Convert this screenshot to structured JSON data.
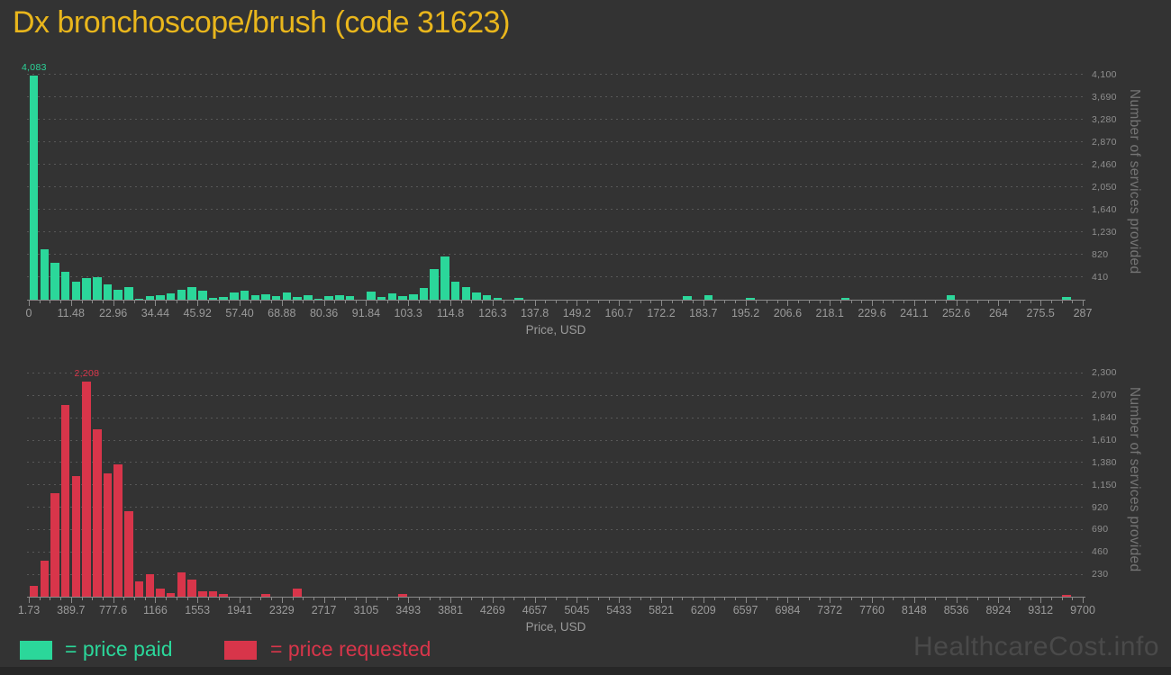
{
  "title": "Dx bronchoscope/brush (code 31623)",
  "watermark": "HealthcareCost.info",
  "colors": {
    "background": "#333333",
    "title": "#e9b61c",
    "price_paid": "#2bd79a",
    "price_requested": "#d8354a",
    "gridline": "#585858",
    "axis_text": "#9a9a9a",
    "watermark": "#4a4a4a"
  },
  "legend": {
    "paid_label": "= price paid",
    "requested_label": "= price requested"
  },
  "chart_data": [
    {
      "type": "bar",
      "series_name": "price paid",
      "xlabel": "Price, USD",
      "ylabel": "Number of services provided",
      "color": "#2bd79a",
      "xlim": [
        0,
        287
      ],
      "ylim": [
        0,
        4305
      ],
      "bin_width_usd": 2.87,
      "grid": true,
      "legend_position": "bottom-left",
      "peak_label": "4,083",
      "x_ticks": [
        "0",
        "11.48",
        "22.96",
        "34.44",
        "45.92",
        "57.40",
        "68.88",
        "80.36",
        "91.84",
        "103.3",
        "114.8",
        "126.3",
        "137.8",
        "149.2",
        "160.7",
        "172.2",
        "183.7",
        "195.2",
        "206.6",
        "218.1",
        "229.6",
        "241.1",
        "252.6",
        "264",
        "275.5",
        "287"
      ],
      "y_ticks": [
        "410",
        "820",
        "1,230",
        "1,640",
        "2,050",
        "2,460",
        "2,870",
        "3,280",
        "3,690",
        "4,100"
      ],
      "values": [
        4083,
        920,
        675,
        515,
        320,
        400,
        410,
        285,
        180,
        235,
        20,
        65,
        75,
        115,
        180,
        225,
        160,
        40,
        50,
        130,
        160,
        85,
        100,
        60,
        135,
        50,
        80,
        20,
        65,
        75,
        60,
        0,
        145,
        50,
        120,
        70,
        100,
        220,
        555,
        785,
        330,
        230,
        125,
        90,
        40,
        0,
        40,
        0,
        0,
        0,
        0,
        0,
        0,
        0,
        0,
        0,
        0,
        0,
        0,
        0,
        0,
        0,
        65,
        0,
        80,
        0,
        0,
        0,
        30,
        0,
        0,
        0,
        0,
        0,
        0,
        0,
        0,
        40,
        0,
        0,
        0,
        0,
        0,
        0,
        0,
        0,
        0,
        80,
        0,
        0,
        0,
        0,
        0,
        0,
        0,
        0,
        0,
        0,
        45,
        0
      ]
    },
    {
      "type": "bar",
      "series_name": "price requested",
      "xlabel": "Price, USD",
      "ylabel": "Number of services provided",
      "color": "#d8354a",
      "xlim": [
        1.73,
        9700
      ],
      "ylim": [
        0,
        2415
      ],
      "bin_width_usd": 96.98,
      "grid": true,
      "legend_position": "bottom-left",
      "peak_label": "2,208",
      "x_ticks": [
        "1.73",
        "389.7",
        "777.6",
        "1166",
        "1553",
        "1941",
        "2329",
        "2717",
        "3105",
        "3493",
        "3881",
        "4269",
        "4657",
        "5045",
        "5433",
        "5821",
        "6209",
        "6597",
        "6984",
        "7372",
        "7760",
        "8148",
        "8536",
        "8924",
        "9312",
        "9700"
      ],
      "y_ticks": [
        "230",
        "460",
        "690",
        "920",
        "1,150",
        "1,380",
        "1,610",
        "1,840",
        "2,070",
        "2,300"
      ],
      "values": [
        110,
        370,
        1060,
        1970,
        1240,
        2208,
        1720,
        1270,
        1360,
        880,
        160,
        230,
        85,
        36,
        250,
        175,
        55,
        60,
        30,
        0,
        0,
        0,
        30,
        0,
        0,
        85,
        0,
        0,
        0,
        0,
        0,
        0,
        0,
        0,
        0,
        30,
        0,
        0,
        0,
        0,
        0,
        0,
        0,
        0,
        0,
        0,
        0,
        0,
        0,
        0,
        0,
        0,
        0,
        0,
        0,
        0,
        0,
        0,
        0,
        0,
        0,
        0,
        0,
        0,
        0,
        0,
        0,
        0,
        0,
        0,
        0,
        0,
        0,
        0,
        0,
        0,
        0,
        0,
        0,
        0,
        0,
        0,
        0,
        0,
        0,
        0,
        0,
        0,
        0,
        0,
        0,
        0,
        0,
        0,
        0,
        0,
        0,
        0,
        20,
        0
      ]
    }
  ]
}
